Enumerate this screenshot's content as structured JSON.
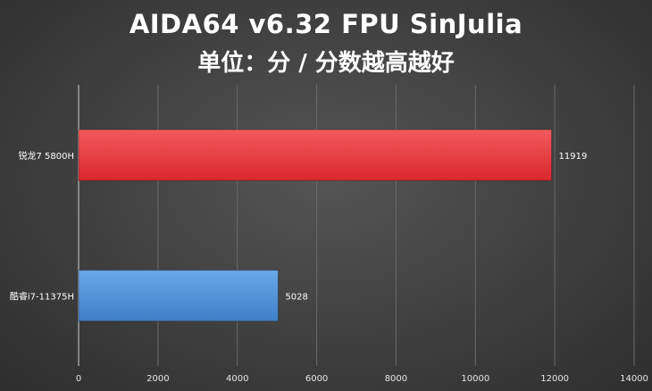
{
  "chart_data": {
    "type": "bar",
    "orientation": "horizontal",
    "title": "AIDA64 v6.32 FPU SinJulia",
    "subtitle": "单位：分 / 分数越高越好",
    "categories": [
      "锐龙7 5800H",
      "酷睿i7-11375H"
    ],
    "values": [
      11919,
      5028
    ],
    "data_labels": [
      "11919",
      "5028"
    ],
    "bar_colors": [
      "#e8383d",
      "#4a8fd6"
    ],
    "xlim": [
      0,
      14000
    ],
    "x_ticks": [
      0,
      2000,
      4000,
      6000,
      8000,
      10000,
      12000,
      14000
    ],
    "grid": true,
    "legend": "none"
  }
}
